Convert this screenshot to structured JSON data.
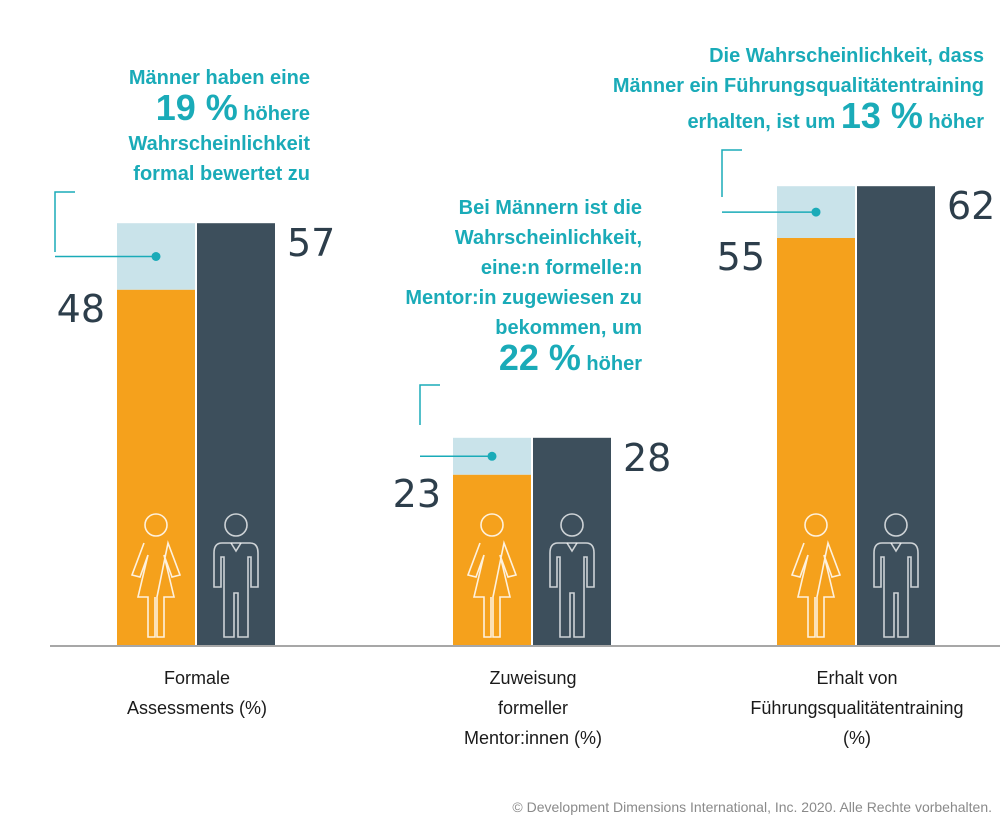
{
  "chart_data": {
    "type": "bar",
    "categories": [
      [
        "Formale",
        "Assessments (%)"
      ],
      [
        "Zuweisung",
        "formeller",
        "Mentor:innen (%)"
      ],
      [
        "Erhalt von",
        "Führungsqualitätentraining",
        "(%)"
      ]
    ],
    "series": [
      {
        "name": "Frauen",
        "color": "#f5a11c",
        "values": [
          48,
          23,
          55
        ]
      },
      {
        "name": "Männer",
        "color": "#3d4f5c",
        "values": [
          57,
          28,
          62
        ]
      }
    ],
    "gap_color": "#c9e3ea",
    "accent_color": "#1aabb8",
    "ylim": [
      0,
      65
    ],
    "annotations": [
      {
        "lines": [
          "Männer haben eine",
          [
            "19 %",
            " höhere"
          ],
          "Wahrscheinlichkeit",
          "formal bewertet zu"
        ]
      },
      {
        "lines": [
          "Bei Männern ist die",
          "Wahrscheinlichkeit,",
          "eine:n formelle:n",
          "Mentor:in zugewiesen zu",
          "bekommen, um",
          [
            "22 %",
            " höher"
          ]
        ]
      },
      {
        "lines": [
          "Die Wahrscheinlichkeit, dass",
          "Männer ein Führungsqualitätentraining",
          [
            "erhalten, ist um ",
            "13 %",
            " höher"
          ]
        ]
      }
    ]
  },
  "footer": {
    "copyright": "© Development Dimensions International, Inc. 2020. Alle Rechte vorbehalten."
  }
}
